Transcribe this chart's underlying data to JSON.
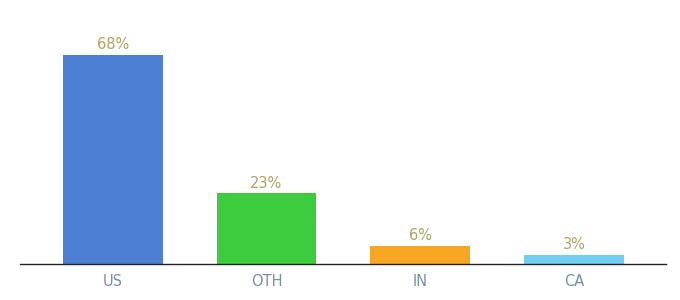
{
  "categories": [
    "US",
    "OTH",
    "IN",
    "CA"
  ],
  "values": [
    68,
    23,
    6,
    3
  ],
  "bar_colors": [
    "#4d7fd4",
    "#3dcc3d",
    "#f5a623",
    "#72cef0"
  ],
  "labels": [
    "68%",
    "23%",
    "6%",
    "3%"
  ],
  "label_color": "#b0a060",
  "tick_color": "#7a8ea8",
  "background_color": "#ffffff",
  "ylim": [
    0,
    78
  ],
  "bar_width": 0.65,
  "label_fontsize": 10.5,
  "tick_fontsize": 10.5,
  "figsize": [
    6.8,
    3.0
  ],
  "dpi": 100
}
